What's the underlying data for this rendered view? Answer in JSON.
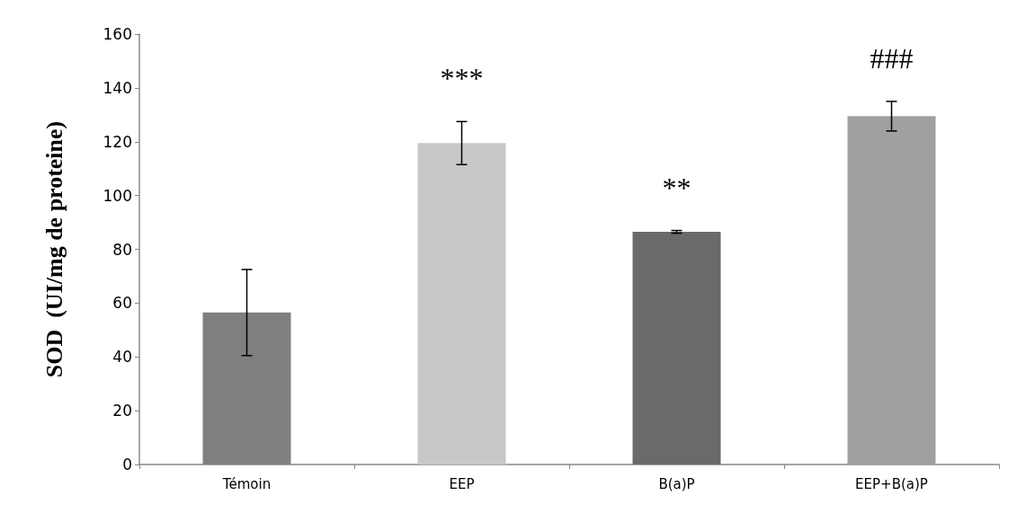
{
  "chart_data": {
    "type": "bar",
    "ylabel": "SOD  (UI/mg de proteine)",
    "categories": [
      "Témoin",
      "EEP",
      "B(a)P",
      "EEP+B(a)P"
    ],
    "values": [
      56.5,
      119.5,
      86.5,
      129.5
    ],
    "errors": [
      16,
      8,
      0.5,
      5.5
    ],
    "colors": [
      "#7f7f7f",
      "#c8c8c8",
      "#6a6a6a",
      "#a0a0a0"
    ],
    "ylim": [
      0,
      160
    ],
    "yticks": [
      0,
      20,
      40,
      60,
      80,
      100,
      120,
      140,
      160
    ],
    "grid": false,
    "annotations": [
      "***",
      "**",
      "###"
    ]
  }
}
